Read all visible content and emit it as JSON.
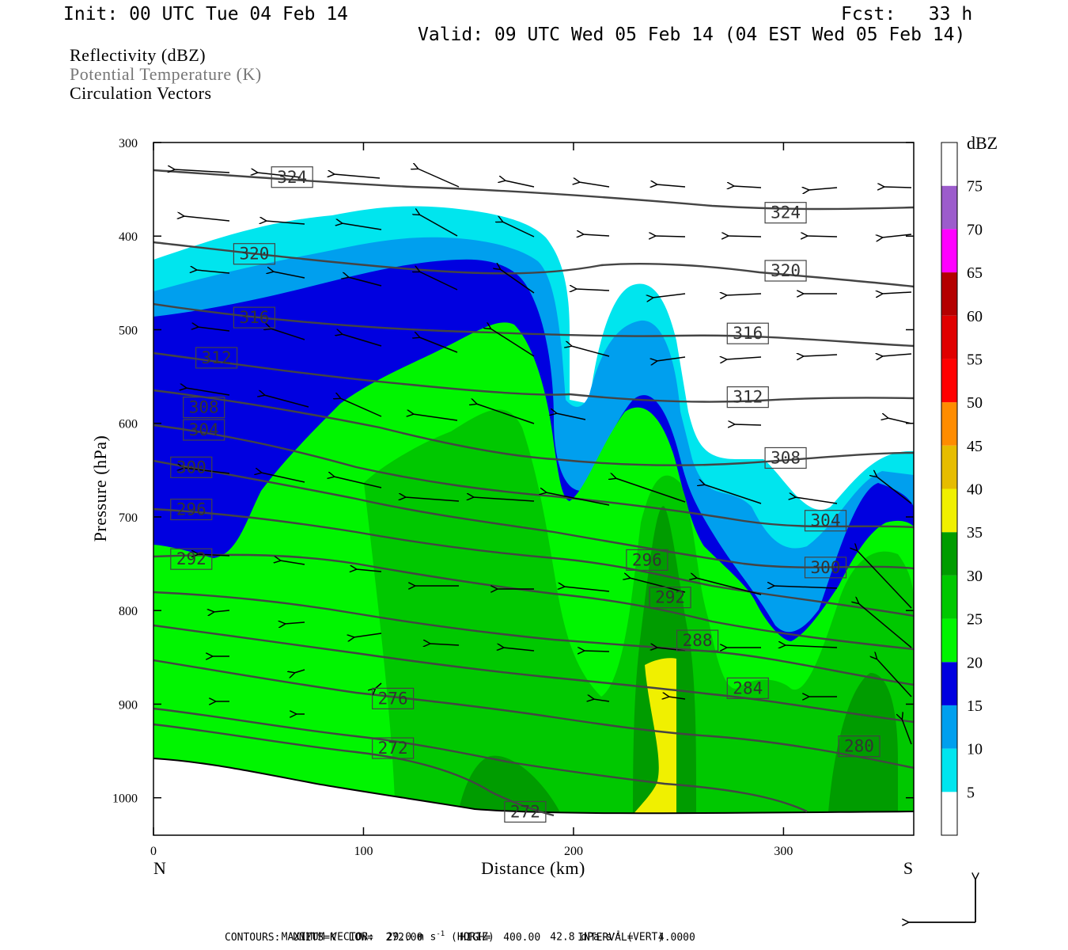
{
  "header": {
    "init": "Init: 00 UTC Tue 04 Feb 14",
    "fcst": "Fcst:   33 h",
    "valid": "Valid: 09 UTC Wed 05 Feb 14 (04 EST Wed 05 Feb 14)"
  },
  "fields": {
    "reflectivity": "Reflectivity (dBZ)",
    "theta": "Potential Temperature (K)",
    "vectors": "Circulation Vectors"
  },
  "footer": {
    "max_prefix": "MAXIMUM VECTOR:",
    "max_horiz": "29.0 m s",
    "max_horiz_exp": "-1",
    "max_horiz_tag": "(HORIZ)",
    "max_vert": "42.8 dPa s",
    "max_vert_exp": "-1",
    "max_vert_tag": "(VERT)",
    "contours": "CONTOURS:  UNITS=K  LOW=  272.00      HIGH=  400.00      INTERVAL=    4.0000"
  },
  "colors": {
    "fill_5": "#00e5ee",
    "fill_10": "#009fee",
    "fill_15": "#0000e0",
    "fill_20": "#00f500",
    "fill_25": "#00c800",
    "fill_30": "#009c00",
    "fill_35": "#f0f000",
    "contour": "#444444"
  },
  "chart_data": {
    "type": "contour cross-section",
    "xlabel": "Distance (km)",
    "ylabel": "Pressure (hPa)",
    "xlim": [
      0,
      362
    ],
    "ylim": [
      1040,
      300
    ],
    "x_ticks": [
      "0",
      "100",
      "200",
      "300"
    ],
    "x_tick_values": [
      0,
      100,
      200,
      300
    ],
    "y_ticks": [
      "300",
      "400",
      "500",
      "600",
      "700",
      "800",
      "900",
      "1000"
    ],
    "y_tick_values": [
      300,
      400,
      500,
      600,
      700,
      800,
      900,
      1000
    ],
    "x_end_labels": {
      "left": "N",
      "right": "S"
    },
    "colorbar": {
      "unit": "dBZ",
      "levels": [
        5,
        10,
        15,
        20,
        25,
        30,
        35,
        40,
        45,
        50,
        55,
        60,
        65,
        70,
        75
      ],
      "labels": [
        "5",
        "10",
        "15",
        "20",
        "25",
        "30",
        "35",
        "40",
        "45",
        "50",
        "55",
        "60",
        "65",
        "70",
        "75"
      ],
      "colors": [
        "#ffffff",
        "#00e5ee",
        "#009fee",
        "#0000e0",
        "#00f500",
        "#00c800",
        "#009c00",
        "#f0f000",
        "#e6bc00",
        "#ff8c00",
        "#ff0000",
        "#e00000",
        "#b40000",
        "#ff00ff",
        "#9c5ccc",
        "#ffffff"
      ]
    },
    "theta_labels": [
      {
        "text": "324",
        "x": 66,
        "p": 337
      },
      {
        "text": "324",
        "x": 301,
        "p": 375
      },
      {
        "text": "320",
        "x": 48,
        "p": 419
      },
      {
        "text": "320",
        "x": 301,
        "p": 437
      },
      {
        "text": "316",
        "x": 48,
        "p": 487
      },
      {
        "text": "316",
        "x": 283,
        "p": 504
      },
      {
        "text": "312",
        "x": 30,
        "p": 530
      },
      {
        "text": "312",
        "x": 283,
        "p": 572
      },
      {
        "text": "308",
        "x": 24,
        "p": 583
      },
      {
        "text": "308",
        "x": 301,
        "p": 637
      },
      {
        "text": "304",
        "x": 24,
        "p": 607
      },
      {
        "text": "304",
        "x": 320,
        "p": 704
      },
      {
        "text": "300",
        "x": 18,
        "p": 647
      },
      {
        "text": "300",
        "x": 320,
        "p": 754
      },
      {
        "text": "296",
        "x": 18,
        "p": 692
      },
      {
        "text": "296",
        "x": 235,
        "p": 746
      },
      {
        "text": "292",
        "x": 18,
        "p": 745
      },
      {
        "text": "292",
        "x": 246,
        "p": 786
      },
      {
        "text": "288",
        "x": 259,
        "p": 832
      },
      {
        "text": "284",
        "x": 283,
        "p": 883
      },
      {
        "text": "280",
        "x": 336,
        "p": 945
      },
      {
        "text": "276",
        "x": 114,
        "p": 894
      },
      {
        "text": "272",
        "x": 114,
        "p": 947
      },
      {
        "text": "272",
        "x": 177,
        "p": 1015
      }
    ]
  }
}
